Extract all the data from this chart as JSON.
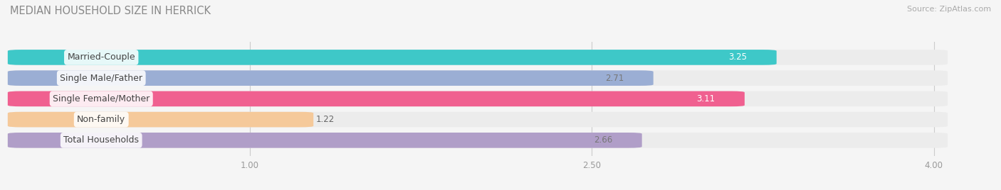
{
  "title": "MEDIAN HOUSEHOLD SIZE IN HERRICK",
  "source": "Source: ZipAtlas.com",
  "categories": [
    "Married-Couple",
    "Single Male/Father",
    "Single Female/Mother",
    "Non-family",
    "Total Households"
  ],
  "values": [
    3.25,
    2.71,
    3.11,
    1.22,
    2.66
  ],
  "bar_colors": [
    "#3ec8c8",
    "#9baed4",
    "#f06090",
    "#f5c99a",
    "#b09ec8"
  ],
  "bar_bg_color": "#ececec",
  "xmin": 0.0,
  "xmax": 4.0,
  "xlim_left": -0.05,
  "xlim_right": 4.25,
  "xticks": [
    1.0,
    2.5,
    4.0
  ],
  "xtick_labels": [
    "1.00",
    "2.50",
    "4.00"
  ],
  "title_fontsize": 10.5,
  "label_fontsize": 9,
  "value_fontsize": 8.5,
  "background_color": "#f5f5f5",
  "bar_height": 0.62,
  "value_label_colors": [
    "#ffffff",
    "#777777",
    "#ffffff",
    "#777777",
    "#777777"
  ],
  "value_inside_threshold": 2.0
}
